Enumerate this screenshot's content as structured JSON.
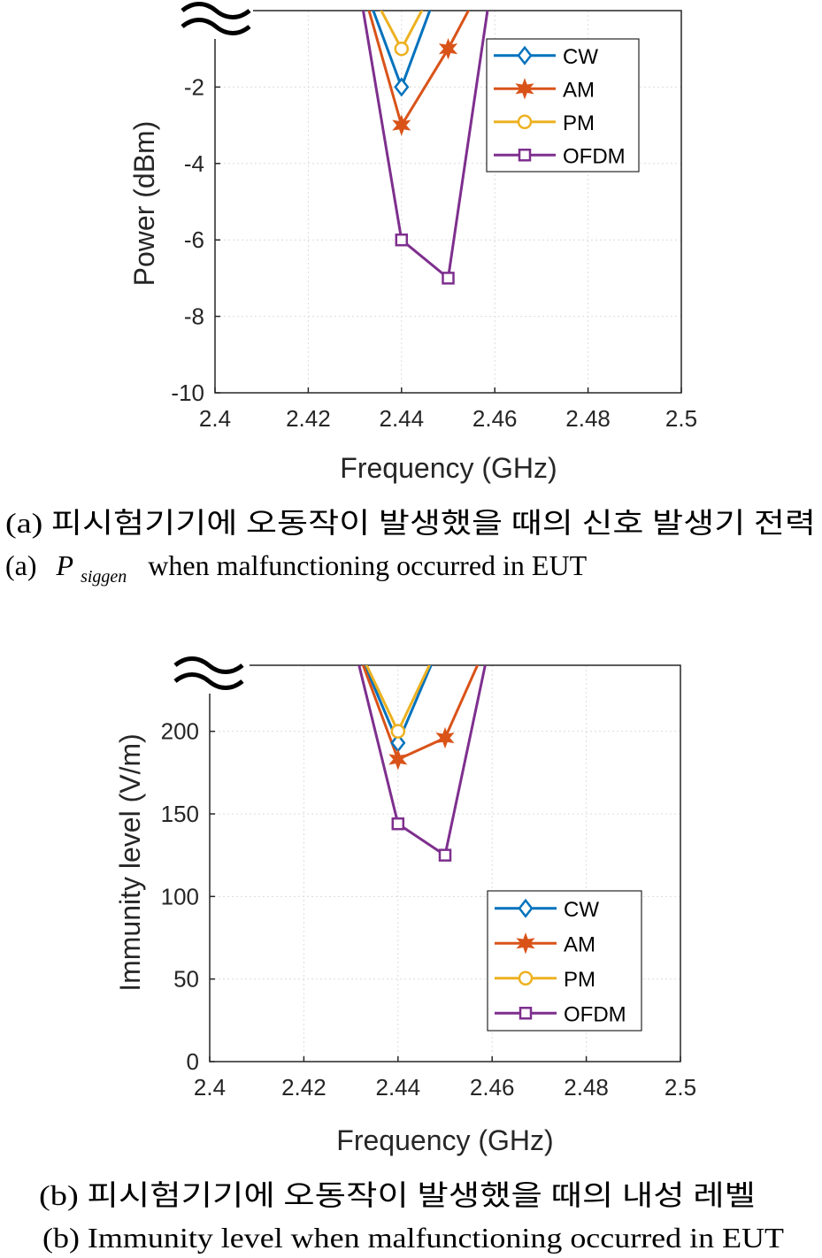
{
  "chart_data": [
    {
      "type": "line",
      "xlabel": "Frequency (GHz)",
      "ylabel": "Power (dBm)",
      "xlim": [
        2.4,
        2.5
      ],
      "ylim": [
        -10,
        0
      ],
      "xticks": [
        "2.4",
        "2.42",
        "2.44",
        "2.46",
        "2.48",
        "2.5"
      ],
      "yticks": [
        "-2",
        "-4",
        "-6",
        "-8",
        "-10"
      ],
      "ytick_values": [
        -2,
        -4,
        -6,
        -8,
        -10
      ],
      "grid": true,
      "axis_break": "top-left",
      "legend_position": "top-right",
      "series": [
        {
          "name": "CW",
          "color": "#0072BD",
          "marker": "diamond",
          "x": [
            2.43,
            2.44,
            2.45
          ],
          "y": [
            1.3,
            -2,
            1.3
          ]
        },
        {
          "name": "AM",
          "color": "#D95319",
          "marker": "hexagram",
          "x": [
            2.43,
            2.44,
            2.45,
            2.46
          ],
          "y": [
            1.3,
            -3,
            -1,
            1.3
          ]
        },
        {
          "name": "PM",
          "color": "#EDB120",
          "marker": "circle",
          "x": [
            2.43,
            2.44,
            2.45
          ],
          "y": [
            1.3,
            -1,
            1.3
          ]
        },
        {
          "name": "OFDM",
          "color": "#7E2F8E",
          "marker": "square",
          "x": [
            2.43,
            2.44,
            2.45,
            2.46
          ],
          "y": [
            1.3,
            -6,
            -7,
            1.3
          ]
        }
      ],
      "caption_ko": "(a) 피시험기기에 오동작이 발생했을 때의 신호 발생기 전력",
      "caption_en_prefix": "(a)",
      "caption_en_symbol": "P",
      "caption_en_subscript": "siggen",
      "caption_en_rest": "when malfunctioning occurred in EUT"
    },
    {
      "type": "line",
      "xlabel": "Frequency (GHz)",
      "ylabel": "Immunity level (V/m)",
      "xlim": [
        2.4,
        2.5
      ],
      "ylim": [
        0,
        240
      ],
      "xticks": [
        "2.4",
        "2.42",
        "2.44",
        "2.46",
        "2.48",
        "2.5"
      ],
      "yticks": [
        "0",
        "50",
        "100",
        "150",
        "200"
      ],
      "ytick_values": [
        0,
        50,
        100,
        150,
        200
      ],
      "grid": true,
      "axis_break": "top-left",
      "legend_position": "bottom-right",
      "series": [
        {
          "name": "CW",
          "color": "#0072BD",
          "marker": "diamond",
          "x": [
            2.43,
            2.44,
            2.45
          ],
          "y": [
            260,
            193,
            260
          ]
        },
        {
          "name": "AM",
          "color": "#D95319",
          "marker": "hexagram",
          "x": [
            2.43,
            2.44,
            2.45,
            2.46
          ],
          "y": [
            260,
            183,
            196,
            260
          ]
        },
        {
          "name": "PM",
          "color": "#EDB120",
          "marker": "circle",
          "x": [
            2.43,
            2.44,
            2.45
          ],
          "y": [
            260,
            200,
            260
          ]
        },
        {
          "name": "OFDM",
          "color": "#7E2F8E",
          "marker": "square",
          "x": [
            2.43,
            2.44,
            2.45,
            2.46
          ],
          "y": [
            260,
            144,
            125,
            260
          ]
        }
      ],
      "caption_ko": "(b) 피시험기기에 오동작이 발생했을 때의 내성 레벨",
      "caption_en": "(b) Immunity level when malfunctioning occurred in EUT"
    }
  ]
}
